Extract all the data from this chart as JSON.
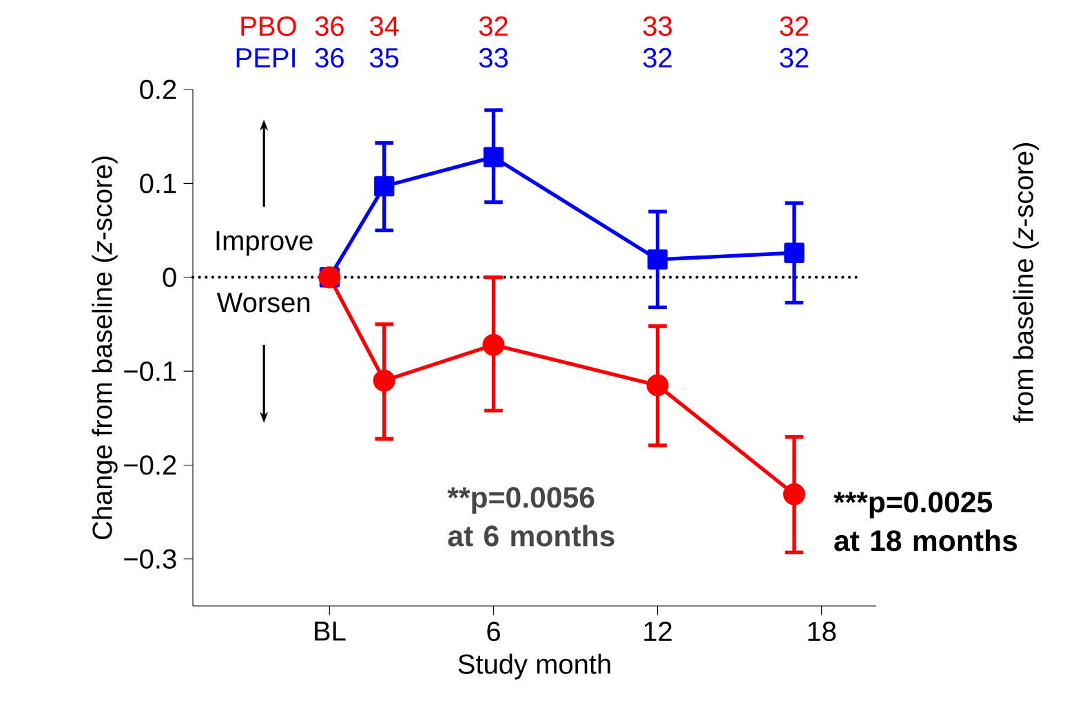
{
  "chart_data": {
    "type": "line",
    "xlabel": "Study month",
    "ylabel": "Change from baseline (*z*-score)",
    "y2label": "from baseline (*z*-score)",
    "x": [
      0,
      2,
      6,
      12,
      17
    ],
    "series": [
      {
        "name": "PEPI",
        "color": "#0000ff",
        "marker": "square",
        "values": [
          0,
          0.097,
          0.128,
          0.019,
          0.026
        ],
        "errors": [
          null,
          [
            0.05,
            0.143
          ],
          [
            0.08,
            0.178
          ],
          [
            -0.032,
            0.07
          ],
          [
            -0.027,
            0.079
          ]
        ]
      },
      {
        "name": "PBO",
        "color": "#ff0000",
        "marker": "circle",
        "values": [
          0,
          -0.11,
          -0.072,
          -0.115,
          -0.231
        ],
        "errors": [
          null,
          [
            -0.172,
            -0.05
          ],
          [
            -0.142,
            0
          ],
          [
            -0.179,
            -0.052
          ],
          [
            -0.293,
            -0.17
          ]
        ]
      }
    ],
    "xlim": [
      -5,
      20
    ],
    "ylim": [
      -0.35,
      0.2
    ],
    "xticks": [
      {
        "value": 0,
        "label": "BL"
      },
      6,
      12,
      18
    ],
    "yticks": [
      {
        "value": -0.3,
        "label": "−0.3"
      },
      {
        "value": -0.2,
        "label": "−0.2"
      },
      {
        "value": -0.1,
        "label": "−0.1"
      },
      0,
      0.1,
      0.2
    ],
    "ref_lines": [
      {
        "axis": "y",
        "value": 0,
        "color": "#000000",
        "line_style": "dotted"
      }
    ],
    "line_style": "solid",
    "annotations": [
      "36",
      "34",
      "32",
      "33",
      "32",
      "36",
      "35",
      "33",
      "32",
      "32",
      "Improve",
      "Worsen",
      "**p=0.0056 at 6 months",
      "***p=0.0025 at 18 months"
    ]
  }
}
